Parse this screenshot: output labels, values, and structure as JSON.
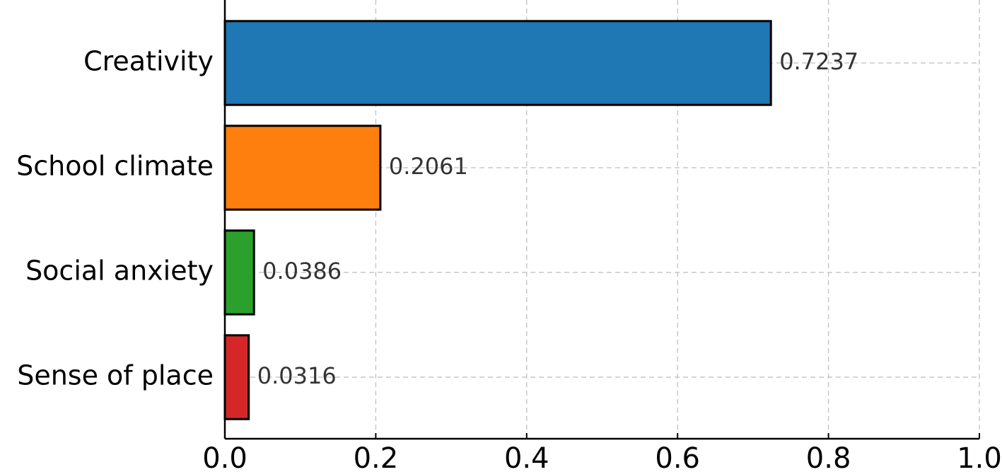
{
  "chart_data": {
    "type": "barh",
    "categories": [
      "Creativity",
      "School climate",
      "Social anxiety",
      "Sense of place"
    ],
    "values": [
      0.7237,
      0.2061,
      0.0386,
      0.0316
    ],
    "colors": [
      "#1f77b4",
      "#ff7f0e",
      "#2ca02c",
      "#d62728"
    ],
    "xlim": [
      0,
      1.0
    ],
    "xticks": [
      {
        "value": 0,
        "label": "0.0"
      },
      0.2,
      0.4,
      0.6,
      0.8,
      {
        "value": 1.0,
        "label": "1.0"
      }
    ],
    "grid": true
  }
}
